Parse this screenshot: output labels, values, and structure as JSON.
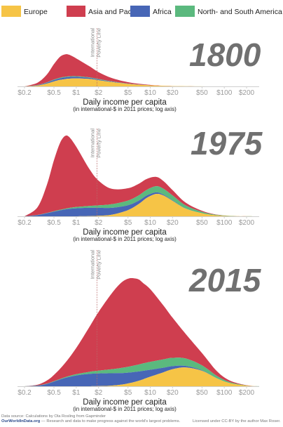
{
  "chart_data": {
    "type": "area",
    "stacked": true,
    "x_axis_scale": "log",
    "legend": {
      "placement": "top",
      "entries": [
        {
          "name": "Europe",
          "color": "#f6c446"
        },
        {
          "name": "Asia and Pacific",
          "color": "#cf3e4f"
        },
        {
          "name": "Africa",
          "color": "#4766b6"
        },
        {
          "name": "North- and South America",
          "color": "#5bb97e"
        }
      ]
    },
    "x_tick_labels": [
      "$0.2",
      "$0.5",
      "$1",
      "$2",
      "$5",
      "$10",
      "$20",
      "$50",
      "$100",
      "$200"
    ],
    "x_ticks": [
      0.2,
      0.5,
      1,
      2,
      5,
      10,
      20,
      50,
      100,
      200
    ],
    "xlabel": "Daily income per capita",
    "xlabel_sub": "(in international-$ in 2011 prices; log axis)",
    "poverty_line_label": [
      "International",
      "Poverty Line"
    ],
    "poverty_line_value": 1.9,
    "panels": [
      {
        "year": "1800",
        "x": [
          0.2,
          0.3,
          0.4,
          0.5,
          0.6,
          0.7,
          0.8,
          1,
          1.5,
          2,
          3,
          5,
          8,
          12,
          20,
          40,
          80,
          150,
          300
        ],
        "series": [
          {
            "name": "Europe",
            "values": [
              0,
              0.5,
              1.8,
              3.2,
              4.2,
              4.7,
              5,
              5.2,
              4.8,
              4,
              2.8,
              1.6,
              0.9,
              0.5,
              0.2,
              0.05,
              0,
              0,
              0
            ]
          },
          {
            "name": "Africa",
            "values": [
              0,
              0.3,
              0.6,
              0.9,
              1,
              1.1,
              1.1,
              1,
              0.7,
              0.45,
              0.25,
              0.1,
              0.05,
              0,
              0,
              0,
              0,
              0,
              0
            ]
          },
          {
            "name": "North- and South America",
            "values": [
              0,
              0.1,
              0.2,
              0.3,
              0.35,
              0.4,
              0.4,
              0.4,
              0.35,
              0.3,
              0.2,
              0.12,
              0.06,
              0.02,
              0,
              0,
              0,
              0,
              0
            ]
          },
          {
            "name": "Asia and Pacific",
            "values": [
              0,
              1.5,
              5,
              10,
              13.5,
              14.5,
              14,
              11.5,
              7.2,
              4.5,
              2.2,
              0.9,
              0.4,
              0.15,
              0.05,
              0,
              0,
              0,
              0
            ]
          }
        ]
      },
      {
        "year": "1975",
        "x": [
          0.2,
          0.3,
          0.4,
          0.5,
          0.6,
          0.7,
          0.8,
          1,
          1.5,
          2,
          3,
          5,
          7,
          9,
          12,
          15,
          20,
          30,
          50,
          80,
          150,
          300
        ],
        "series": [
          {
            "name": "Europe",
            "values": [
              0,
              0,
              0,
              0,
              0,
              0,
              0,
              0,
              0.1,
              0.3,
              1,
              4,
              8,
              12,
              14.5,
              13.5,
              10,
              5,
              2,
              0.6,
              0.1,
              0
            ]
          },
          {
            "name": "Africa",
            "values": [
              0,
              0.8,
              2,
              3,
              3.8,
              4.4,
              4.8,
              5.2,
              5.4,
              5.2,
              4.5,
              3.2,
              2.2,
              1.5,
              1,
              0.6,
              0.3,
              0.1,
              0,
              0,
              0,
              0
            ]
          },
          {
            "name": "North- and South America",
            "values": [
              0,
              0.1,
              0.2,
              0.3,
              0.4,
              0.5,
              0.6,
              0.8,
              1.2,
              1.6,
              2.3,
              3,
              3.4,
              3.7,
              4,
              3.8,
              3.2,
              2,
              0.9,
              0.3,
              0.05,
              0
            ]
          },
          {
            "name": "Asia and Pacific",
            "values": [
              0,
              5,
              18,
              33,
              43,
              47,
              46,
              39,
              24,
              16,
              10,
              8,
              7.5,
              7,
              6,
              5,
              3.5,
              1.8,
              0.7,
              0.2,
              0,
              0
            ]
          }
        ]
      },
      {
        "year": "2015",
        "x": [
          0.2,
          0.3,
          0.4,
          0.5,
          0.7,
          1,
          1.5,
          2,
          3,
          4,
          5,
          6,
          7,
          8,
          10,
          15,
          20,
          30,
          50,
          80,
          120,
          200,
          300
        ],
        "series": [
          {
            "name": "Europe",
            "values": [
              0,
              0,
              0,
              0,
              0,
              0,
              0,
              0.1,
              0.4,
              1,
              1.8,
              2.7,
              3.6,
              4.5,
              6.2,
              9,
              11,
              12.2,
              10,
              5,
              2,
              0.4,
              0
            ]
          },
          {
            "name": "Africa",
            "values": [
              0,
              0.4,
              1.5,
              3,
              5.3,
              7,
              8,
              8.2,
              8,
              7.5,
              7,
              6.5,
              6,
              5.5,
              4.5,
              3,
              2,
              1,
              0.3,
              0.1,
              0,
              0,
              0
            ]
          },
          {
            "name": "North- and South America",
            "values": [
              0,
              0.1,
              0.2,
              0.3,
              0.5,
              0.8,
              1.3,
              1.8,
              2.6,
              3.3,
              3.8,
              4.2,
              4.5,
              4.8,
              5.1,
              5.4,
              5.4,
              4.8,
              3.2,
              1.5,
              0.6,
              0.1,
              0
            ]
          },
          {
            "name": "Asia and Pacific",
            "values": [
              0,
              0.5,
              2,
              4,
              9,
              17,
              29,
              38,
              49,
              55,
              57,
              56.5,
              55,
              52,
              47,
              35,
              26,
              16,
              8,
              3,
              1,
              0.2,
              0
            ]
          }
        ]
      }
    ]
  },
  "footer": {
    "source": "Data source: Calculations by Ola Rosling from Gapminder",
    "site": "OurWorldInData.org",
    "site_tagline": " — Research and data to make progress against the world's largest problems.",
    "license": "Licensed under CC-BY by the author Max Roser."
  }
}
